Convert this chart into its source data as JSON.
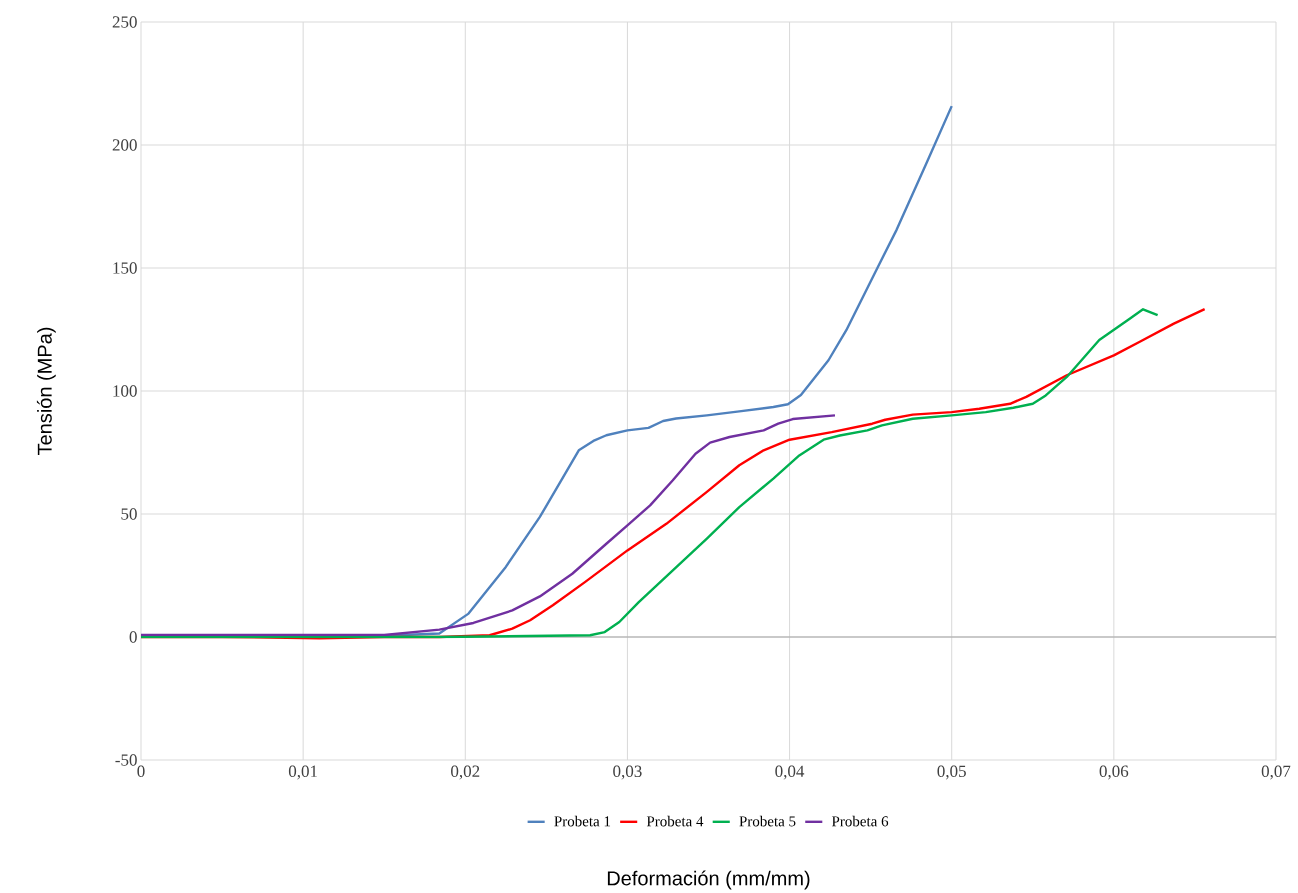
{
  "chart_data": {
    "type": "line",
    "xlabel": "Deformación (mm/mm)",
    "ylabel": "Tensión (MPa)",
    "xlim": [
      0,
      0.07
    ],
    "ylim": [
      -50,
      250
    ],
    "xticks": [
      {
        "value": 0,
        "label": "0"
      },
      {
        "value": 0.01,
        "label": "0,01"
      },
      {
        "value": 0.02,
        "label": "0,02"
      },
      {
        "value": 0.03,
        "label": "0,03"
      },
      {
        "value": 0.04,
        "label": "0,04"
      },
      {
        "value": 0.05,
        "label": "0,05"
      },
      {
        "value": 0.06,
        "label": "0,06"
      },
      {
        "value": 0.07,
        "label": "0,07"
      }
    ],
    "yticks": [
      -50,
      0,
      50,
      100,
      150,
      200,
      250
    ],
    "grid": true,
    "legend": "bottom",
    "marker": "none",
    "line_style": "solid",
    "series": [
      {
        "name": "Probeta 1",
        "color": "#4f81bd",
        "x": [
          0,
          0.005,
          0.01,
          0.015,
          0.0184,
          0.0202,
          0.0225,
          0.0246,
          0.027,
          0.0279,
          0.0287,
          0.03,
          0.0313,
          0.0322,
          0.033,
          0.0349,
          0.0369,
          0.039,
          0.0399,
          0.0407,
          0.0424,
          0.0435,
          0.0453,
          0.0466,
          0.0484,
          0.05
        ],
        "values": [
          0.5,
          0.5,
          0.5,
          0.5,
          1.4,
          9.5,
          28.5,
          48.8,
          75.9,
          79.7,
          82,
          84,
          85,
          87.8,
          88.8,
          90.1,
          91.7,
          93.5,
          94.6,
          98.4,
          112.5,
          124.7,
          148.5,
          165.5,
          192,
          215.8
        ]
      },
      {
        "name": "Probeta 4",
        "color": "#ff0000",
        "x": [
          0,
          0.005,
          0.011,
          0.015,
          0.0184,
          0.0215,
          0.0229,
          0.024,
          0.0254,
          0.0274,
          0.03,
          0.0324,
          0.0349,
          0.0369,
          0.0384,
          0.04,
          0.0426,
          0.0451,
          0.0459,
          0.0476,
          0.05,
          0.0517,
          0.0536,
          0.0546,
          0.0571,
          0.06,
          0.0616,
          0.0637,
          0.0656
        ],
        "values": [
          0,
          0,
          -0.5,
          0,
          0,
          0.7,
          3.4,
          6.8,
          12.9,
          22.4,
          35.2,
          46,
          59,
          69.8,
          75.9,
          80.2,
          83.3,
          86.7,
          88.3,
          90.4,
          91.4,
          92.8,
          94.8,
          97.6,
          106.4,
          114.5,
          120,
          127.4,
          133.3
        ]
      },
      {
        "name": "Probeta 5",
        "color": "#00b050",
        "x": [
          0,
          0.01,
          0.0184,
          0.0277,
          0.0286,
          0.0295,
          0.0307,
          0.0328,
          0.0349,
          0.0369,
          0.039,
          0.0406,
          0.0421,
          0.0431,
          0.0448,
          0.0457,
          0.0476,
          0.05,
          0.0521,
          0.0538,
          0.055,
          0.0558,
          0.0571,
          0.0591,
          0.061,
          0.0618,
          0.0627
        ],
        "values": [
          0,
          0,
          0,
          0.7,
          2,
          6.1,
          14.2,
          27.1,
          40,
          52.8,
          64.4,
          73.8,
          80.2,
          81.9,
          84,
          86,
          88.7,
          90.1,
          91.4,
          93.2,
          94.8,
          98.2,
          105.7,
          120.7,
          129.5,
          133.2,
          130.8
        ]
      },
      {
        "name": "Probeta 6",
        "color": "#7030a0",
        "x": [
          0,
          0.005,
          0.01,
          0.015,
          0.0184,
          0.0205,
          0.0229,
          0.0246,
          0.0266,
          0.0287,
          0.03,
          0.0314,
          0.0328,
          0.0342,
          0.0351,
          0.0363,
          0.0384,
          0.0393,
          0.0402,
          0.0428
        ],
        "values": [
          0.8,
          0.8,
          0.8,
          0.8,
          3,
          5.7,
          10.8,
          16.5,
          25.7,
          37.9,
          45.4,
          53.5,
          63.7,
          74.5,
          79,
          81.3,
          84,
          86.7,
          88.6,
          90.1
        ]
      }
    ]
  }
}
